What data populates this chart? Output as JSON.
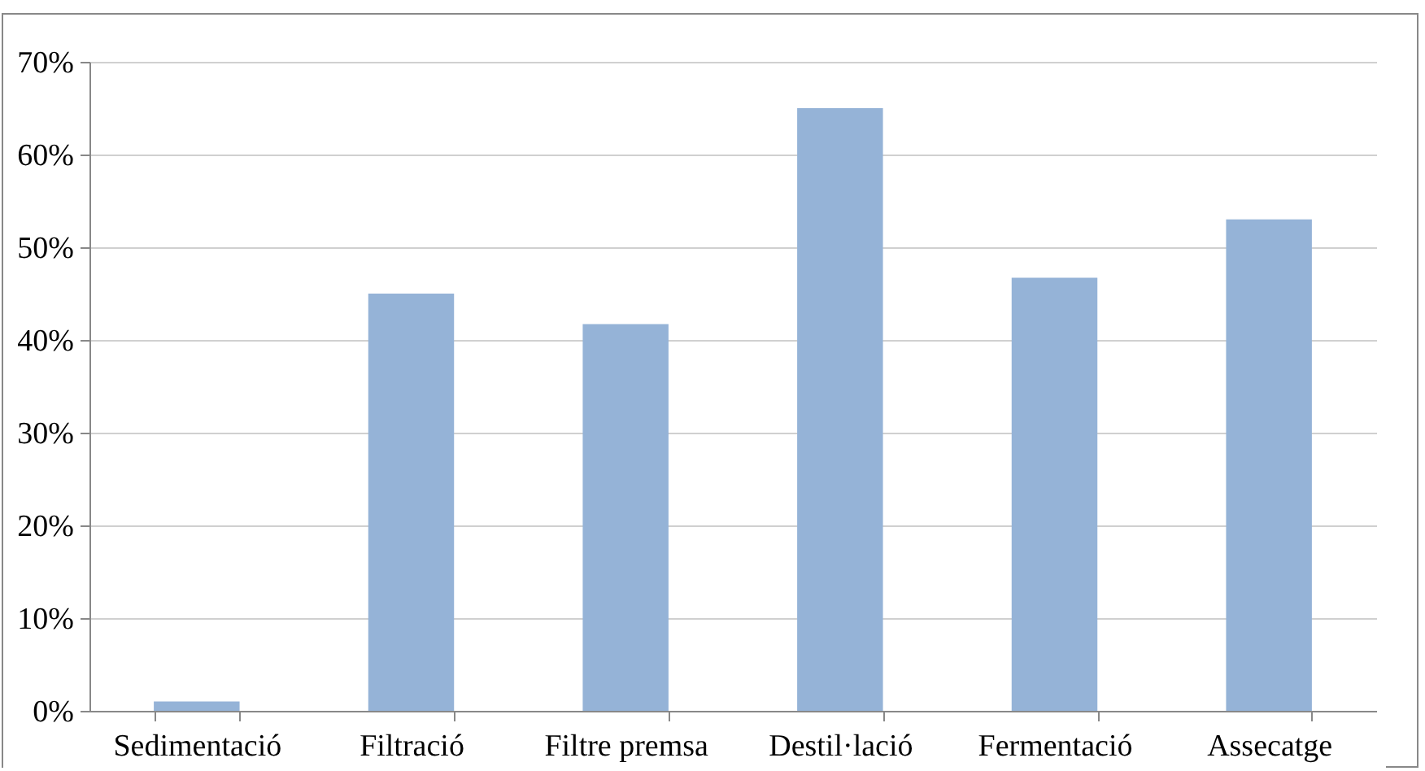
{
  "chart_data": {
    "type": "bar",
    "categories": [
      "Sedimentació",
      "Filtració",
      "Filtre premsa",
      "Destil·lació",
      "Fermentació",
      "Assecatge"
    ],
    "values": [
      1,
      45,
      41.7,
      65,
      46.7,
      53
    ],
    "color": "#95b3d7",
    "ylim": [
      0,
      70
    ],
    "yticks": [
      {
        "value": 0,
        "label": "0%"
      },
      {
        "value": 10,
        "label": "10%"
      },
      {
        "value": 20,
        "label": "20%"
      },
      {
        "value": 30,
        "label": "30%"
      },
      {
        "value": 40,
        "label": "40%"
      },
      {
        "value": 50,
        "label": "50%"
      },
      {
        "value": 60,
        "label": "60%"
      },
      {
        "value": 70,
        "label": "70%"
      }
    ],
    "grid": "y"
  }
}
